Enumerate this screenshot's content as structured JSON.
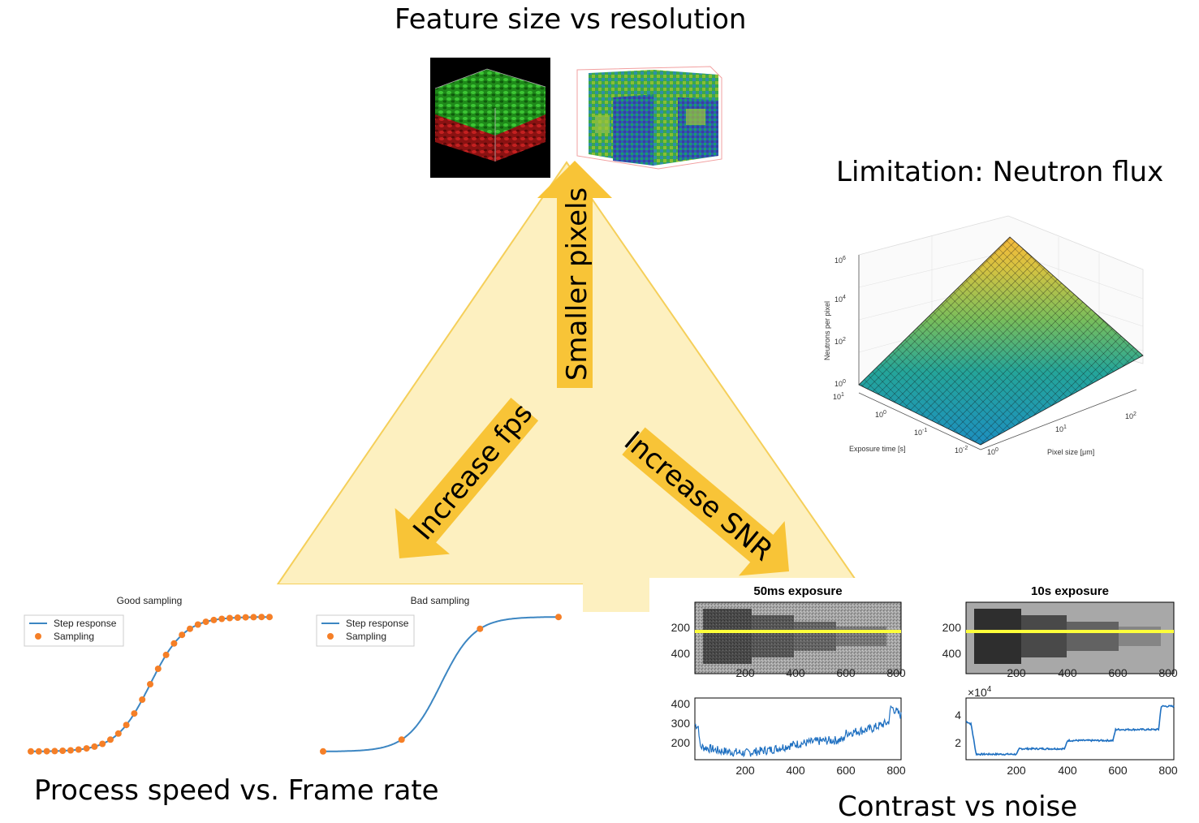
{
  "headings": {
    "top": "Feature size vs resolution",
    "right": "Limitation: Neutron flux",
    "bottom_left": "Process speed vs. Frame rate",
    "bottom_right": "Contrast vs noise"
  },
  "arrows": {
    "up": "Smaller pixels",
    "left": "Increase fps",
    "right": "Increase SNR"
  },
  "colors": {
    "triangle": "#fdf0c0",
    "arrow": "#f8c437",
    "step_line": "#3c86c2",
    "sampling_dot": "#f57f27",
    "profile_line": "#1f70c1",
    "yellow_line": "#fdff3a"
  },
  "chart_data": [
    {
      "type": "line",
      "title": "Good sampling",
      "legend": [
        "Step response",
        "Sampling"
      ],
      "legend_position": "top-left",
      "sample_count": 31
    },
    {
      "type": "line",
      "title": "Bad sampling",
      "legend": [
        "Step response",
        "Sampling"
      ],
      "legend_position": "top-left",
      "sample_count": 4
    },
    {
      "type": "heatmap",
      "title": "50ms exposure",
      "x_ticks": [
        "200",
        "400",
        "600",
        "800"
      ],
      "y_ticks": [
        "200",
        "400"
      ],
      "xlim": [
        0,
        820
      ],
      "ylim": [
        0,
        480
      ]
    },
    {
      "type": "heatmap",
      "title": "10s exposure",
      "x_ticks": [
        "200",
        "400",
        "600",
        "800"
      ],
      "y_ticks": [
        "200",
        "400"
      ],
      "xlim": [
        0,
        820
      ],
      "ylim": [
        0,
        480
      ]
    },
    {
      "type": "line",
      "name": "50ms profile",
      "x_ticks": [
        "200",
        "400",
        "600",
        "800"
      ],
      "y_ticks": [
        "200",
        "300",
        "400"
      ],
      "xlim": [
        0,
        820
      ],
      "ylim": [
        130,
        410
      ],
      "x": [
        0,
        15,
        20,
        100,
        200,
        300,
        400,
        500,
        590,
        600,
        700,
        770,
        780,
        800,
        820
      ],
      "y": [
        290,
        280,
        190,
        170,
        160,
        175,
        200,
        215,
        220,
        250,
        270,
        300,
        370,
        350,
        330
      ]
    },
    {
      "type": "line",
      "name": "10s profile",
      "x_ticks": [
        "200",
        "400",
        "600",
        "800"
      ],
      "y_ticks": [
        "2",
        "4"
      ],
      "y_exponent_label": "×10",
      "y_exponent": "4",
      "xlim": [
        0,
        820
      ],
      "ylim": [
        0.8,
        5.3
      ],
      "x": [
        0,
        20,
        40,
        200,
        210,
        390,
        400,
        580,
        590,
        760,
        770,
        820
      ],
      "y": [
        3.6,
        3.4,
        1.2,
        1.2,
        1.6,
        1.6,
        2.2,
        2.2,
        3.0,
        3.0,
        4.7,
        4.7
      ]
    },
    {
      "type": "surface",
      "zlabel": "Neutrons per pixel",
      "xlabel": "Exposure time [s]",
      "ylabel": "Pixel size [μm]",
      "z_ticks": [
        {
          "base": "10",
          "exp": "0"
        },
        {
          "base": "10",
          "exp": "2"
        },
        {
          "base": "10",
          "exp": "4"
        },
        {
          "base": "10",
          "exp": "6"
        }
      ],
      "x_ticks": [
        {
          "base": "10",
          "exp": "1"
        },
        {
          "base": "10",
          "exp": "0"
        },
        {
          "base": "10",
          "exp": "-1"
        },
        {
          "base": "10",
          "exp": "-2"
        }
      ],
      "y_ticks": [
        {
          "base": "10",
          "exp": "0"
        },
        {
          "base": "10",
          "exp": "1"
        },
        {
          "base": "10",
          "exp": "2"
        }
      ]
    }
  ]
}
